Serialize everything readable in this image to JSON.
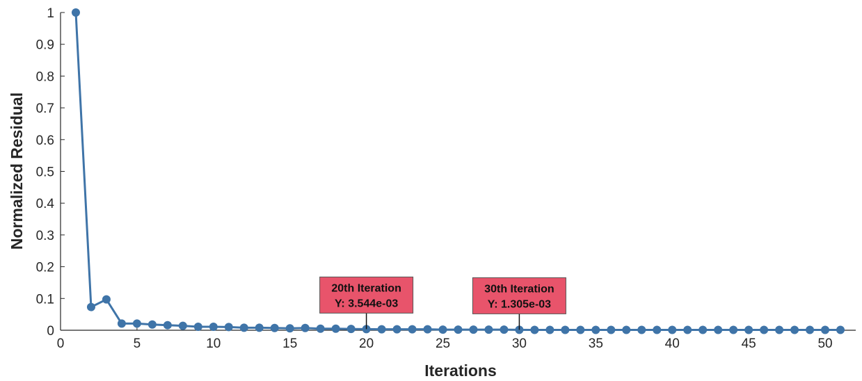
{
  "chart_data": {
    "type": "line",
    "xlabel": "Iterations",
    "ylabel": "Normalized Residual",
    "xlim": [
      0,
      52
    ],
    "ylim": [
      0,
      1
    ],
    "xticks": [
      0,
      5,
      10,
      15,
      20,
      25,
      30,
      35,
      40,
      45,
      50
    ],
    "yticks": [
      0,
      0.1,
      0.2,
      0.3,
      0.4,
      0.5,
      0.6,
      0.7,
      0.8,
      0.9,
      1
    ],
    "grid": false,
    "marker": "circle",
    "series": [
      {
        "color": "#3f74a8",
        "x": [
          1,
          2,
          3,
          4,
          5,
          6,
          7,
          8,
          9,
          10,
          11,
          12,
          13,
          14,
          15,
          16,
          17,
          18,
          19,
          20,
          21,
          22,
          23,
          24,
          25,
          26,
          27,
          28,
          29,
          30,
          31,
          32,
          33,
          34,
          35,
          36,
          37,
          38,
          39,
          40,
          41,
          42,
          43,
          44,
          45,
          46,
          47,
          48,
          49,
          50,
          51
        ],
        "y": [
          1,
          0.073,
          0.097,
          0.021,
          0.021,
          0.018,
          0.016,
          0.014,
          0.011,
          0.011,
          0.01,
          0.008,
          0.008,
          0.007,
          0.006,
          0.007,
          0.005,
          0.005,
          0.004,
          0.003544,
          0.003,
          0.003,
          0.003,
          0.003,
          0.002,
          0.002,
          0.002,
          0.002,
          0.002,
          0.001305,
          0.001,
          0.001,
          0.001,
          0.001,
          0.001,
          0.001,
          0.001,
          0.001,
          0.001,
          0.001,
          0.001,
          0.001,
          0.001,
          0.001,
          0.001,
          0.001,
          0.001,
          0.001,
          0.001,
          0.001,
          0.001
        ]
      }
    ],
    "annotations": [
      {
        "x": 20,
        "y": 0.003544,
        "line1": "20th Iteration",
        "line2": "Y: 3.544e-03",
        "color": "#e8546b"
      },
      {
        "x": 30,
        "y": 0.001305,
        "line1": "30th Iteration",
        "line2": "Y: 1.305e-03",
        "color": "#e8546b"
      }
    ]
  }
}
